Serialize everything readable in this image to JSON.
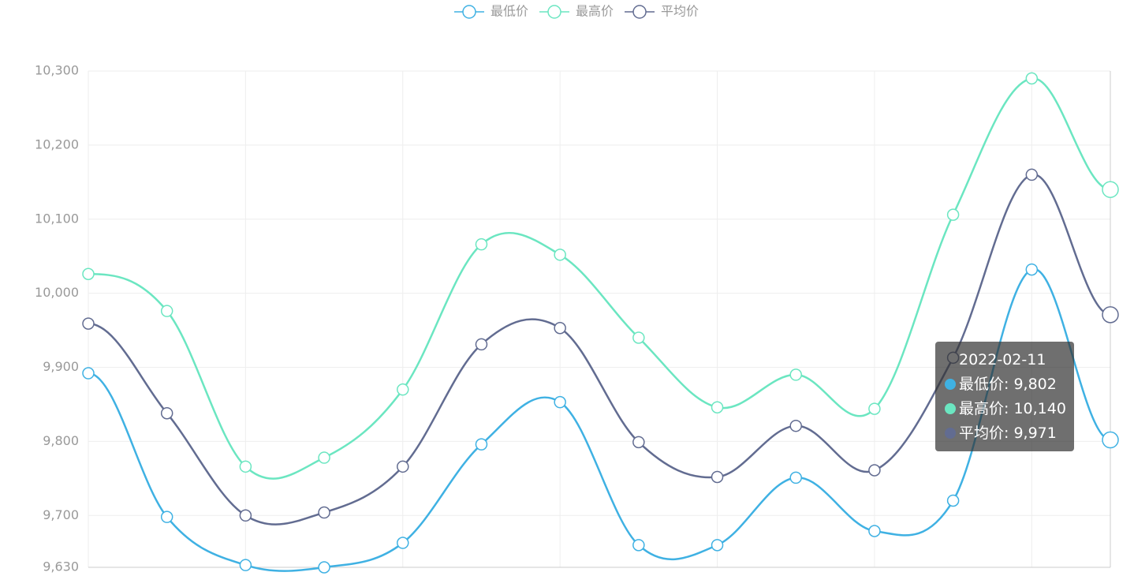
{
  "chart_data": {
    "type": "line",
    "categories": [
      null,
      null,
      null,
      null,
      null,
      null,
      null,
      null,
      null,
      null,
      null,
      null,
      null,
      "2022-02-11"
    ],
    "series": [
      {
        "name": "最低价",
        "color": "#3fb1e3",
        "values": [
          9892,
          9698,
          9633,
          9630,
          9663,
          9796,
          9853,
          9660,
          9660,
          9751,
          9679,
          9720,
          10032,
          9802
        ],
        "value_labels": [
          null,
          null,
          null,
          null,
          null,
          null,
          null,
          null,
          null,
          null,
          null,
          null,
          null,
          "9,802"
        ]
      },
      {
        "name": "最高价",
        "color": "#6be6c1",
        "values": [
          10026,
          9976,
          9766,
          9778,
          9870,
          10066,
          10052,
          9940,
          9846,
          9890,
          9844,
          10106,
          10290,
          10140
        ],
        "value_labels": [
          null,
          null,
          null,
          null,
          null,
          null,
          null,
          null,
          null,
          null,
          null,
          null,
          null,
          "10,140"
        ]
      },
      {
        "name": "平均价",
        "color": "#626c91",
        "values": [
          9959,
          9838,
          9700,
          9704,
          9766,
          9931,
          9953,
          9799,
          9752,
          9821,
          9761,
          9913,
          10160,
          9971
        ],
        "value_labels": [
          null,
          null,
          null,
          null,
          null,
          null,
          null,
          null,
          null,
          null,
          null,
          null,
          null,
          "9,971"
        ]
      }
    ],
    "ylim": [
      9630,
      10300
    ],
    "yticks": [
      {
        "value": 9630,
        "label": "9,630"
      },
      {
        "value": 9700,
        "label": "9,700"
      },
      {
        "value": 9800,
        "label": "9,800"
      },
      {
        "value": 9900,
        "label": "9,900"
      },
      {
        "value": 10000,
        "label": "10,000"
      },
      {
        "value": 10100,
        "label": "10,100"
      },
      {
        "value": 10200,
        "label": "10,200"
      },
      {
        "value": 10300,
        "label": "10,300"
      }
    ],
    "grid": true,
    "smooth": true,
    "legend": "top"
  }
}
